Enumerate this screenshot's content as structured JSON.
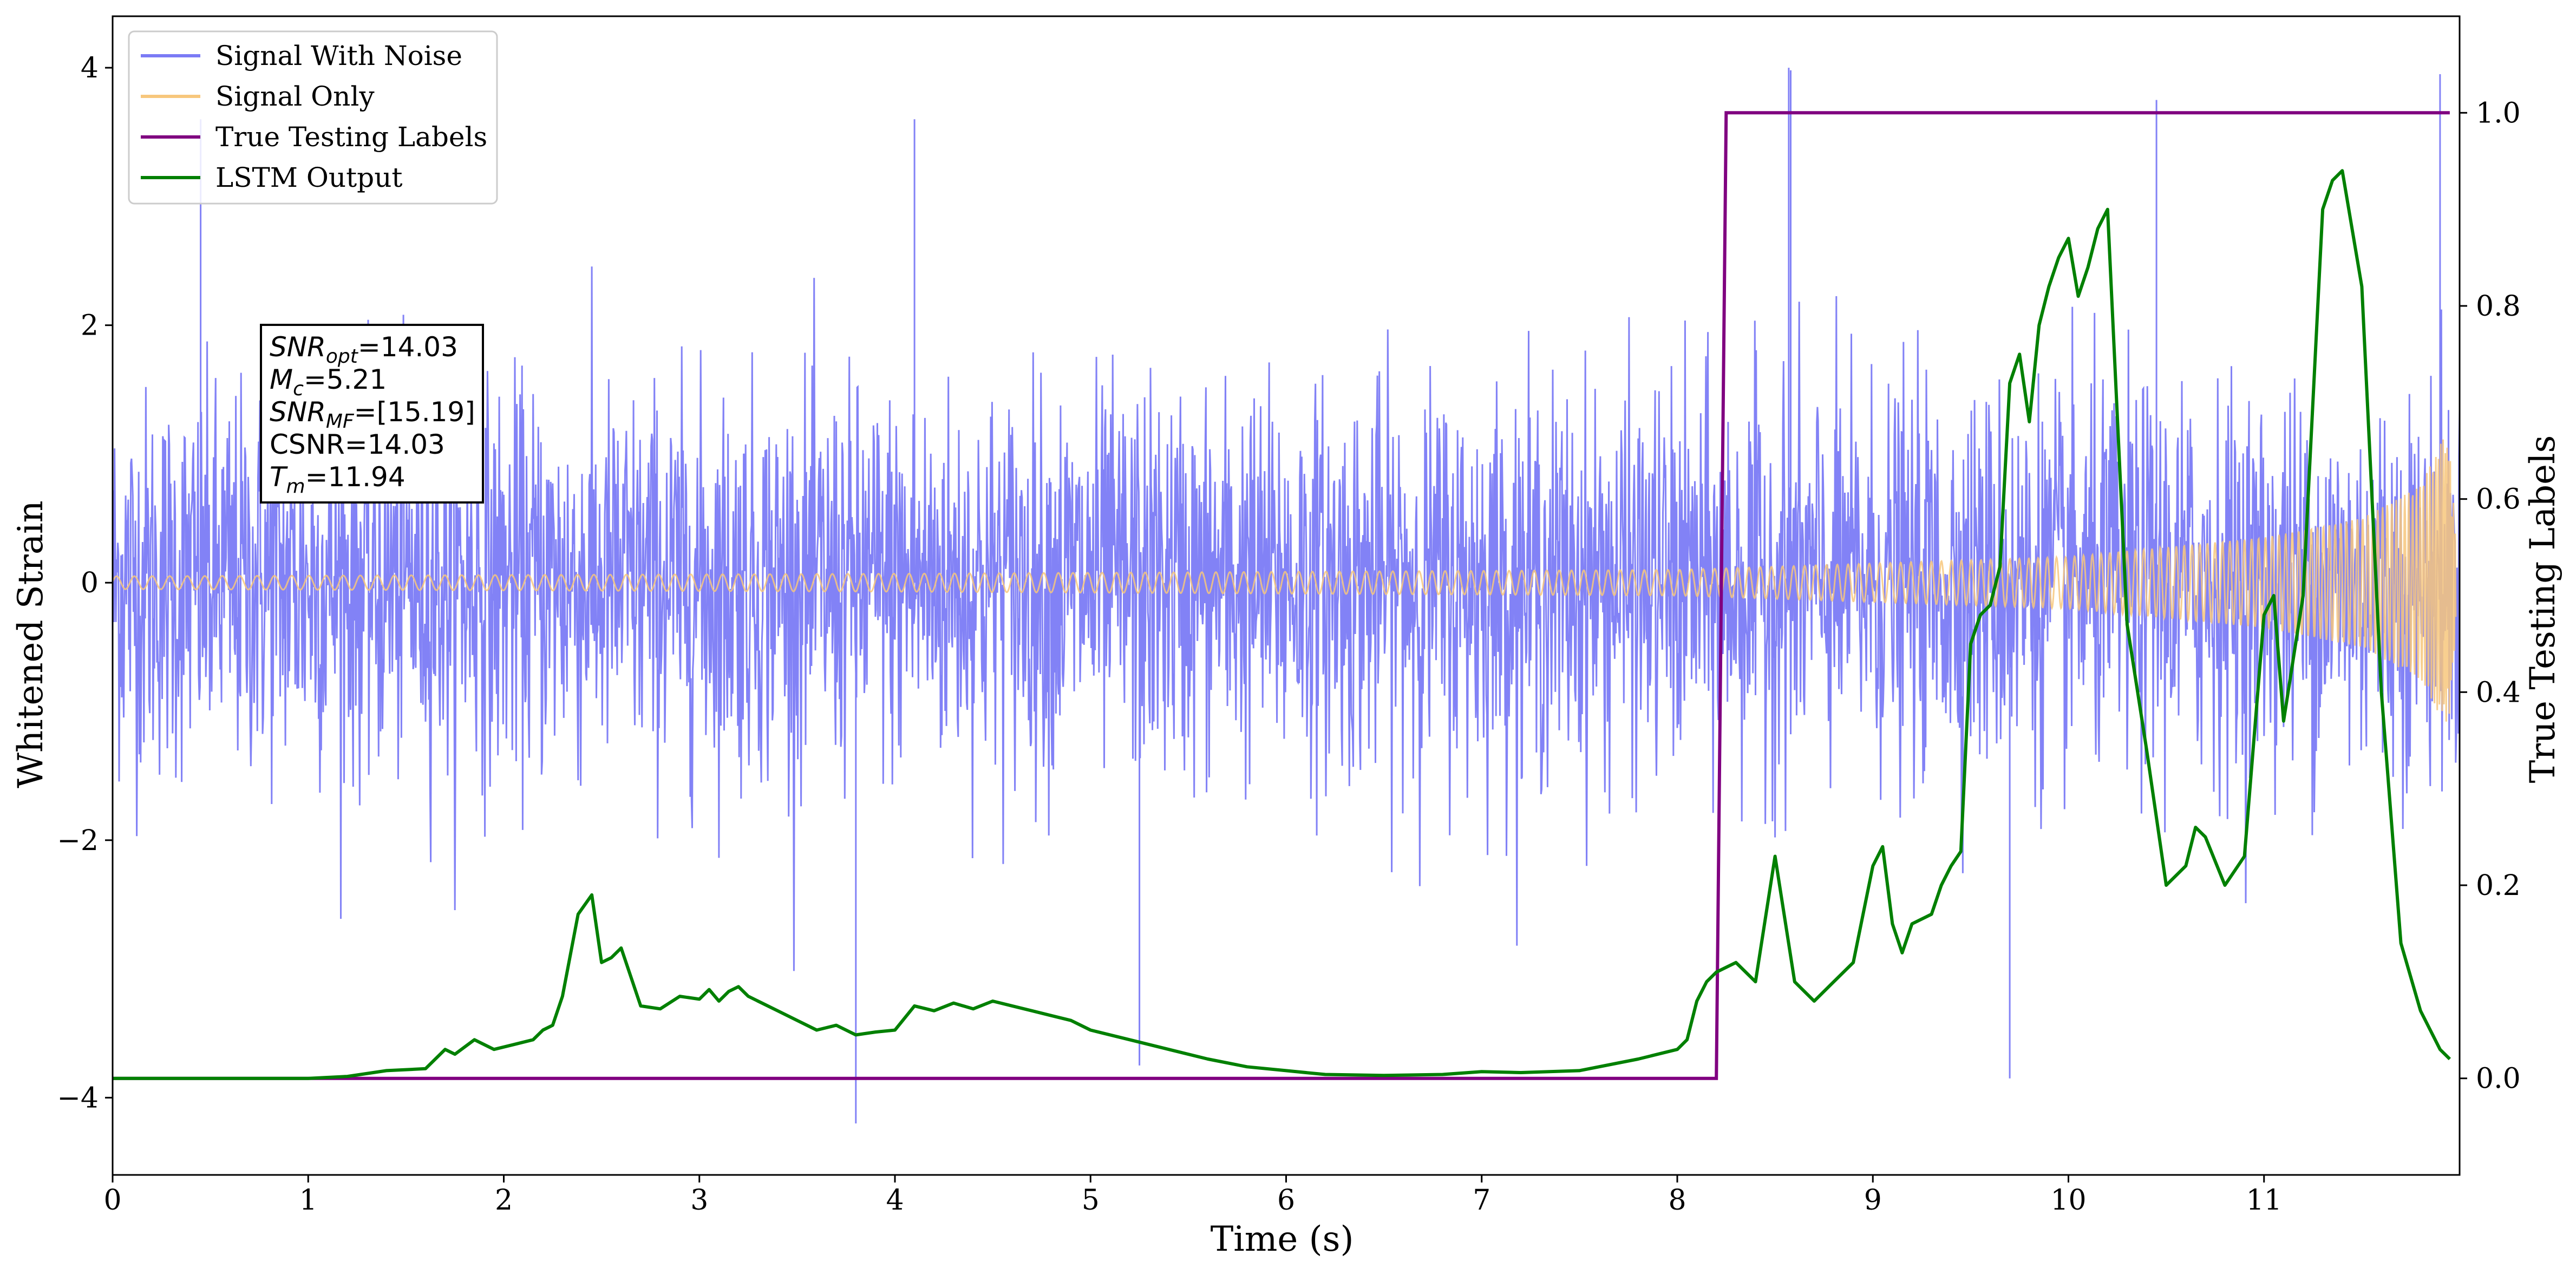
{
  "chart_data": {
    "type": "line",
    "xlabel": "Time (s)",
    "ylabel": "Whitened Strain",
    "ylabel_right": "True Testing Labels",
    "xlim": [
      0,
      12.0
    ],
    "ylim": [
      -4.6,
      4.4
    ],
    "ylim_right": [
      -0.1,
      1.1
    ],
    "x_ticks": [
      0,
      1,
      2,
      3,
      4,
      5,
      6,
      7,
      8,
      9,
      10,
      11
    ],
    "y_ticks": [
      -4,
      -2,
      0,
      2,
      4
    ],
    "y_ticks_right": [
      0.0,
      0.2,
      0.4,
      0.6,
      0.8,
      1.0
    ],
    "legend_position": "upper-left",
    "grid": false,
    "series": [
      {
        "name": "Signal With Noise",
        "axis": "left",
        "color": "#7b7bf5",
        "style": "dense noise around zero, amplitude about +/-2 with spikes to about +/-4",
        "spikes": [
          {
            "x": 3.8,
            "y": -4.2
          },
          {
            "x": 8.57,
            "y": 4.0
          },
          {
            "x": 8.58,
            "y": 3.98
          },
          {
            "x": 11.9,
            "y": 3.95
          },
          {
            "x": 10.45,
            "y": 3.75
          },
          {
            "x": 9.7,
            "y": -3.85
          },
          {
            "x": 0.45,
            "y": 3.6
          },
          {
            "x": 4.1,
            "y": 3.6
          },
          {
            "x": 5.25,
            "y": -3.75
          }
        ]
      },
      {
        "name": "Signal Only",
        "axis": "left",
        "color": "#f7c77c",
        "style": "chirp envelope growing from about 0.05 to 1.2 near merger at 11.94 s",
        "envelope": {
          "x": [
            0,
            4,
            8,
            10,
            11,
            11.5,
            11.8,
            11.94,
            12.0
          ],
          "y": [
            0.05,
            0.07,
            0.1,
            0.2,
            0.35,
            0.5,
            0.75,
            1.2,
            0.0
          ]
        }
      },
      {
        "name": "True Testing Labels",
        "axis": "right",
        "color": "#800080",
        "x": [
          0,
          8.2,
          8.25,
          11.95
        ],
        "y": [
          0.0,
          0.0,
          1.0,
          1.0
        ]
      },
      {
        "name": "LSTM Output",
        "axis": "right",
        "color": "#008000",
        "x": [
          0,
          0.5,
          1.0,
          1.2,
          1.4,
          1.6,
          1.7,
          1.75,
          1.85,
          1.95,
          2.05,
          2.15,
          2.2,
          2.25,
          2.3,
          2.38,
          2.45,
          2.5,
          2.55,
          2.6,
          2.7,
          2.8,
          2.9,
          3.0,
          3.05,
          3.1,
          3.15,
          3.2,
          3.25,
          3.3,
          3.4,
          3.5,
          3.6,
          3.7,
          3.8,
          3.9,
          4.0,
          4.1,
          4.2,
          4.3,
          4.4,
          4.5,
          4.6,
          4.7,
          4.8,
          4.9,
          5.0,
          5.2,
          5.4,
          5.6,
          5.8,
          6.0,
          6.2,
          6.5,
          6.8,
          7.0,
          7.2,
          7.5,
          7.8,
          7.9,
          8.0,
          8.05,
          8.1,
          8.15,
          8.2,
          8.3,
          8.4,
          8.5,
          8.6,
          8.7,
          8.8,
          8.9,
          9.0,
          9.05,
          9.1,
          9.15,
          9.2,
          9.3,
          9.35,
          9.4,
          9.45,
          9.5,
          9.55,
          9.6,
          9.65,
          9.7,
          9.75,
          9.8,
          9.85,
          9.9,
          9.95,
          10.0,
          10.05,
          10.1,
          10.15,
          10.2,
          10.3,
          10.4,
          10.5,
          10.6,
          10.65,
          10.7,
          10.8,
          10.9,
          11.0,
          11.05,
          11.1,
          11.2,
          11.3,
          11.35,
          11.4,
          11.5,
          11.6,
          11.7,
          11.8,
          11.9,
          11.95
        ],
        "y": [
          0.0,
          0.0,
          0.0,
          0.002,
          0.008,
          0.01,
          0.03,
          0.025,
          0.04,
          0.03,
          0.035,
          0.04,
          0.05,
          0.055,
          0.085,
          0.17,
          0.19,
          0.12,
          0.125,
          0.135,
          0.075,
          0.072,
          0.085,
          0.082,
          0.092,
          0.08,
          0.09,
          0.095,
          0.085,
          0.08,
          0.07,
          0.06,
          0.05,
          0.055,
          0.045,
          0.048,
          0.05,
          0.075,
          0.07,
          0.078,
          0.072,
          0.08,
          0.075,
          0.07,
          0.065,
          0.06,
          0.05,
          0.04,
          0.03,
          0.02,
          0.012,
          0.008,
          0.004,
          0.003,
          0.004,
          0.007,
          0.006,
          0.008,
          0.02,
          0.025,
          0.03,
          0.04,
          0.08,
          0.1,
          0.11,
          0.12,
          0.1,
          0.23,
          0.1,
          0.08,
          0.1,
          0.12,
          0.22,
          0.24,
          0.16,
          0.13,
          0.16,
          0.17,
          0.2,
          0.22,
          0.235,
          0.45,
          0.48,
          0.49,
          0.53,
          0.72,
          0.75,
          0.68,
          0.78,
          0.82,
          0.85,
          0.87,
          0.81,
          0.84,
          0.88,
          0.9,
          0.47,
          0.34,
          0.2,
          0.22,
          0.26,
          0.25,
          0.2,
          0.23,
          0.48,
          0.5,
          0.37,
          0.5,
          0.9,
          0.93,
          0.94,
          0.82,
          0.4,
          0.14,
          0.07,
          0.03,
          0.02
        ]
      }
    ],
    "annotation": {
      "lines": [
        {
          "base": "SNR",
          "sub": "opt",
          "rest": "=14.03"
        },
        {
          "base": "M",
          "sub": "c",
          "rest": "=5.21"
        },
        {
          "base": "SNR",
          "sub": "MF",
          "rest": "=[15.19]"
        },
        {
          "base": "CSNR",
          "sub": "",
          "rest": "=14.03"
        },
        {
          "base": "T",
          "sub": "m",
          "rest": "=11.94"
        }
      ]
    }
  }
}
